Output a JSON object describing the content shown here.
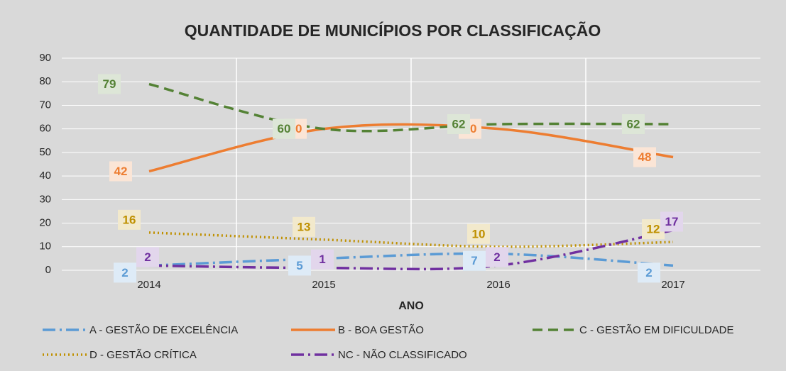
{
  "chart_data": {
    "type": "line",
    "title": "QUANTIDADE DE MUNICÍPIOS POR CLASSIFICAÇÃO",
    "x_label": "ANO",
    "categories": [
      "2014",
      "2015",
      "2016",
      "2017"
    ],
    "ylim": [
      0,
      90
    ],
    "yticks": [
      0,
      10,
      20,
      30,
      40,
      50,
      60,
      70,
      80,
      90
    ],
    "grid": true,
    "smooth": true,
    "legend": "bottom",
    "series": [
      {
        "name": "A - GESTÃO DE EXCELÊNCIA",
        "color": "#5b9bd5",
        "linestyle": "dash-dot",
        "values": [
          2,
          5,
          7,
          2
        ]
      },
      {
        "name": "B - BOA GESTÃO",
        "color": "#ed7d31",
        "linestyle": "solid",
        "values": [
          42,
          60,
          60,
          48
        ]
      },
      {
        "name": "C - GESTÃO EM DIFICULDADE",
        "color": "#548235",
        "linestyle": "dashed",
        "values": [
          79,
          60,
          62,
          62
        ]
      },
      {
        "name": "D - GESTÃO CRÍTICA",
        "color": "#bf9000",
        "linestyle": "dotted",
        "values": [
          16,
          13,
          10,
          12
        ]
      },
      {
        "name": "NC - NÃO CLASSIFICADO",
        "color": "#7030a0",
        "linestyle": "dash-dot",
        "values": [
          2,
          1,
          2,
          17
        ]
      }
    ]
  }
}
